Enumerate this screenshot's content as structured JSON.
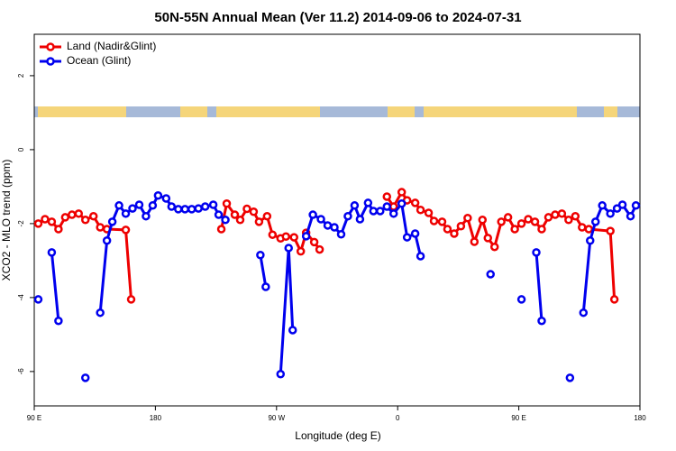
{
  "chart_data": {
    "type": "line",
    "title": "50N-55N Annual Mean (Ver 11.2)   2014-09-06 to 2024-07-31",
    "x_label": "Longitude (deg E)",
    "y_label": "XCO2 - MLO trend (ppm)",
    "xlim": [
      90,
      540
    ],
    "xticks": [
      {
        "value": 90,
        "label": "90 E"
      },
      {
        "value": 180,
        "label": "180"
      },
      {
        "value": 270,
        "label": "90 W"
      },
      {
        "value": 360,
        "label": "0"
      },
      {
        "value": 450,
        "label": "90 E"
      },
      {
        "value": 540,
        "label": "180"
      }
    ],
    "ylim": [
      -6.93,
      3.12
    ],
    "yticks": [
      2,
      0,
      -2,
      -4,
      -6
    ],
    "legend": "upper left",
    "series": [
      {
        "name": "Land (Nadir&Glint)",
        "color": "#ee0000",
        "x": [
          93,
          98,
          103,
          108,
          113,
          118,
          123,
          128,
          134,
          139,
          144,
          158,
          162,
          null,
          229,
          233,
          239,
          243,
          248,
          253,
          257,
          263,
          267,
          273,
          277,
          283,
          288,
          292,
          298,
          302,
          null,
          352,
          357,
          363,
          367,
          373,
          377,
          383,
          387,
          393,
          397,
          402,
          407,
          412,
          417,
          423,
          427,
          432,
          437,
          442,
          447,
          452,
          457,
          462,
          467,
          472,
          477,
          482,
          487,
          492,
          497,
          502,
          518,
          521
        ],
        "values": [
          -2.0,
          -1.88,
          -1.95,
          -2.15,
          -1.83,
          -1.76,
          -1.73,
          -1.9,
          -1.8,
          -2.1,
          -2.15,
          -2.17,
          -4.05,
          null,
          -2.15,
          -1.46,
          -1.76,
          -1.9,
          -1.6,
          -1.68,
          -1.95,
          -1.8,
          -2.3,
          -2.4,
          -2.35,
          -2.37,
          -2.75,
          -2.25,
          -2.5,
          -2.7,
          null,
          -1.27,
          -1.54,
          -1.15,
          -1.37,
          -1.44,
          -1.63,
          -1.71,
          -1.93,
          -1.95,
          -2.15,
          -2.27,
          -2.07,
          -1.85,
          -2.49,
          -1.9,
          -2.39,
          -2.63,
          -1.95,
          -1.83,
          -2.15,
          -2.0,
          -1.88,
          -1.95,
          -2.15,
          -1.83,
          -1.76,
          -1.73,
          -1.9,
          -1.8,
          -2.1,
          -2.15,
          -2.2,
          -4.05
        ]
      },
      {
        "name": "Ocean (Glint)",
        "color": "#0000ee",
        "x": [
          93,
          null,
          103,
          108,
          null,
          128,
          null,
          139,
          144,
          148,
          153,
          158,
          163,
          168,
          173,
          178,
          182,
          188,
          192,
          197,
          202,
          207,
          212,
          217,
          223,
          227,
          232,
          null,
          258,
          262,
          null,
          273,
          279,
          282,
          null,
          292,
          297,
          303,
          308,
          313,
          318,
          323,
          328,
          332,
          338,
          342,
          347,
          352,
          357,
          363,
          367,
          373,
          377,
          null,
          429,
          null,
          452,
          null,
          463,
          467,
          null,
          488,
          null,
          498,
          503,
          507,
          512,
          518,
          523,
          527,
          533,
          537
        ],
        "values": [
          -4.05,
          null,
          -2.78,
          -4.63,
          null,
          -6.17,
          null,
          -4.41,
          -2.46,
          -1.95,
          -1.51,
          -1.73,
          -1.59,
          -1.49,
          -1.8,
          -1.51,
          -1.24,
          -1.32,
          -1.54,
          -1.61,
          -1.61,
          -1.61,
          -1.59,
          -1.54,
          -1.49,
          -1.76,
          -1.9,
          null,
          -2.85,
          -3.71,
          null,
          -6.07,
          -2.66,
          -4.88,
          null,
          -2.34,
          -1.76,
          -1.88,
          -2.05,
          -2.1,
          -2.29,
          -1.8,
          -1.51,
          -1.88,
          -1.44,
          -1.66,
          -1.66,
          -1.54,
          -1.73,
          -1.46,
          -2.37,
          -2.27,
          -2.88,
          null,
          -3.37,
          null,
          -4.05,
          null,
          -2.78,
          -4.63,
          null,
          -6.17,
          null,
          -4.41,
          -2.46,
          -1.95,
          -1.51,
          -1.73,
          -1.59,
          -1.49,
          -1.8,
          -1.51
        ]
      }
    ]
  }
}
